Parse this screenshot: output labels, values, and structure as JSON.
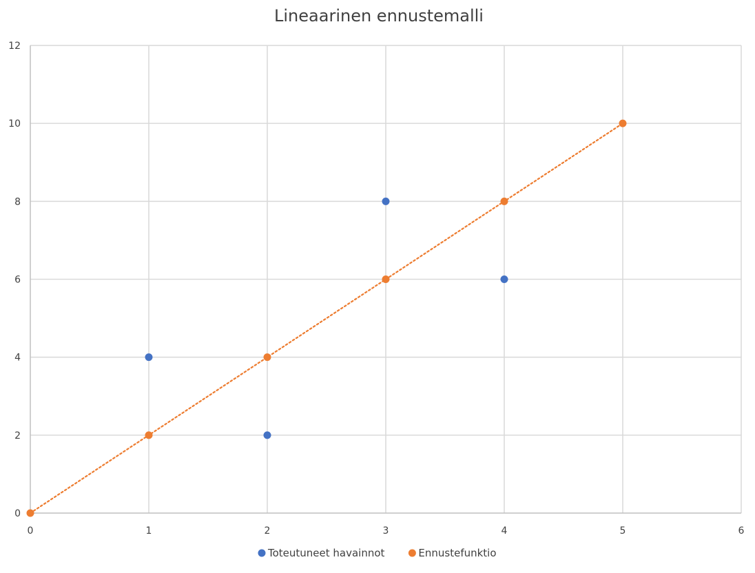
{
  "chart_data": {
    "type": "scatter",
    "title": "Lineaarinen ennustemalli",
    "xlabel": "",
    "ylabel": "",
    "xlim": [
      0,
      6
    ],
    "ylim": [
      0,
      12
    ],
    "x_ticks": [
      "0",
      "1",
      "2",
      "3",
      "4",
      "5",
      "6"
    ],
    "y_ticks": [
      "0",
      "2",
      "4",
      "6",
      "8",
      "10",
      "12"
    ],
    "grid": true,
    "legend_position": "bottom",
    "series": [
      {
        "name": "Toteutuneet havainnot",
        "color": "#4472C4",
        "line": "none",
        "points": [
          {
            "x": 1,
            "y": 4
          },
          {
            "x": 2,
            "y": 2
          },
          {
            "x": 3,
            "y": 8
          },
          {
            "x": 4,
            "y": 6
          }
        ]
      },
      {
        "name": "Ennustefunktio",
        "color": "#ED7D31",
        "line": "dotted",
        "points": [
          {
            "x": 0,
            "y": 0
          },
          {
            "x": 1,
            "y": 2
          },
          {
            "x": 2,
            "y": 4
          },
          {
            "x": 3,
            "y": 6
          },
          {
            "x": 4,
            "y": 8
          },
          {
            "x": 5,
            "y": 10
          }
        ]
      }
    ]
  }
}
